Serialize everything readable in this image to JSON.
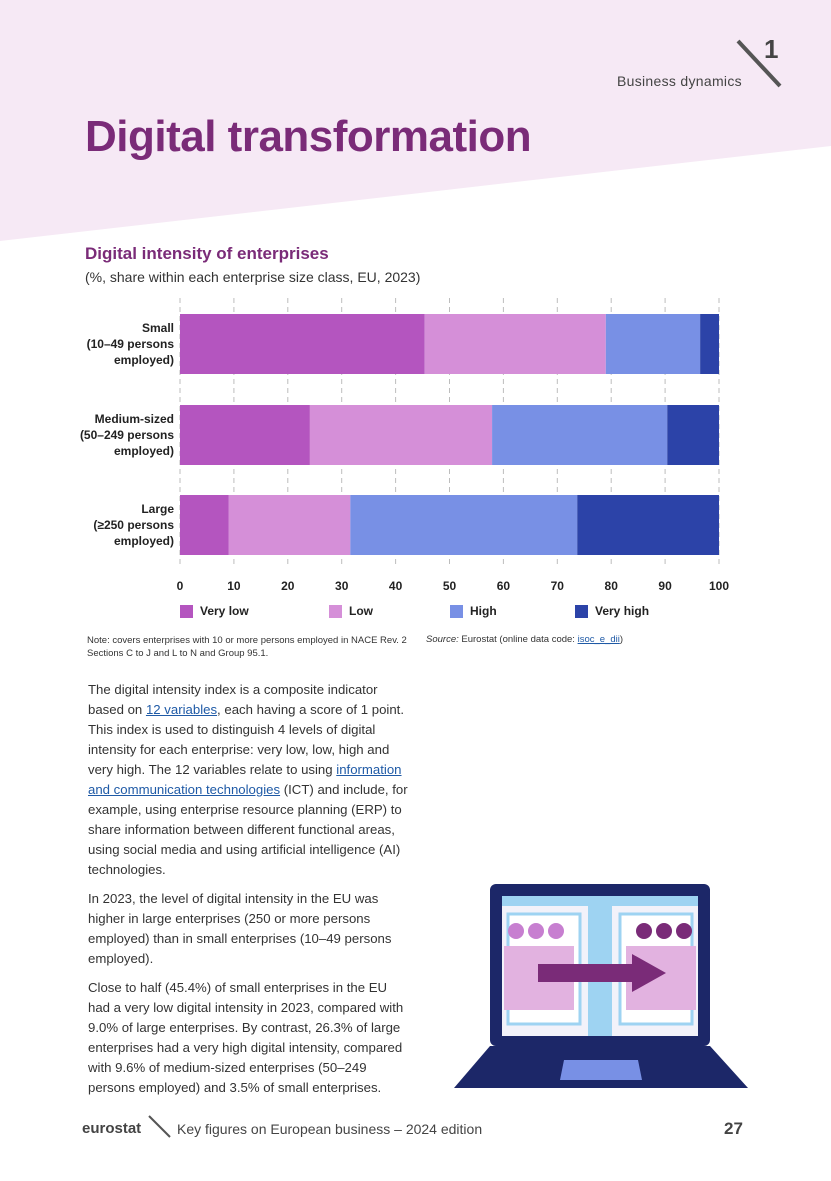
{
  "header": {
    "chapter_number": "1",
    "chapter_label": "Business dynamics",
    "title": "Digital transformation"
  },
  "chart_title": "Digital intensity of enterprises",
  "chart_subtitle": "(%, share within each enterprise size class, EU, 2023)",
  "chart_data": {
    "type": "bar",
    "orientation": "horizontal",
    "stacked": true,
    "categories": [
      [
        "Small",
        "(10–49 persons",
        "employed)"
      ],
      [
        "Medium-sized",
        "(50–249 persons",
        "employed)"
      ],
      [
        "Large",
        "(≥250 persons",
        "employed)"
      ]
    ],
    "series": [
      {
        "name": "Very low",
        "color": "#b455bf",
        "values": [
          45.4,
          24.1,
          9.0
        ]
      },
      {
        "name": "Low",
        "color": "#d58fd8",
        "values": [
          33.6,
          33.8,
          22.6
        ]
      },
      {
        "name": "High",
        "color": "#7890e5",
        "values": [
          17.5,
          32.5,
          42.1
        ]
      },
      {
        "name": "Very high",
        "color": "#2c43a8",
        "values": [
          3.5,
          9.6,
          26.3
        ]
      }
    ],
    "xlim": [
      0,
      100
    ],
    "xticks": [
      0,
      10,
      20,
      30,
      40,
      50,
      60,
      70,
      80,
      90,
      100
    ],
    "grid": true,
    "legend_position": "bottom"
  },
  "note": "Note: covers enterprises with 10 or more persons employed in NACE Rev. 2 Sections C to J and L to N and Group 95.1.",
  "source": {
    "label": "Source:",
    "text": "Eurostat (online data code:",
    "code": "isoc_e_dii",
    "close": ")"
  },
  "body": {
    "p1_a": "The digital intensity index is a composite indicator based on",
    "p1_link1": "12 variables",
    "p1_b": ", each having a score of 1 point. This index is used to distinguish 4 levels of digital intensity for each enterprise: very low, low, high and very high. The 12 variables relate to using",
    "p1_link2": "information and communication technologies",
    "p1_c": "(ICT) and include, for example, using enterprise resource planning (ERP) to share information between different functional areas, using social media and using artificial intelligence (AI) technologies.",
    "p2": "In 2023, the level of digital intensity in the EU was higher in large enterprises (250 or more persons employed) than in small enterprises (10–49 persons employed).",
    "p3": "Close to half (45.4%) of small enterprises in the EU had a very low digital intensity in 2023, compared with 9.0% of large enterprises. By contrast, 26.3% of large enterprises had a very high digital intensity, compared with 9.6% of medium-sized enterprises (50–249 persons employed) and 3.5% of small enterprises."
  },
  "footer": {
    "logo": "eurostat",
    "publication": "Key figures on European business – 2024 edition",
    "page_number": "27"
  }
}
